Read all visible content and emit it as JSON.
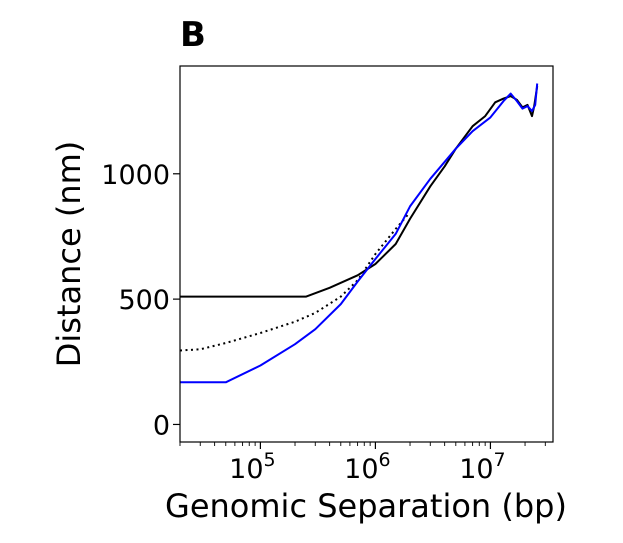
{
  "panel_label": "B",
  "chart_data": {
    "type": "line",
    "xlabel": "Genomic Separation (bp)",
    "ylabel": "Distance (nm)",
    "xscale": "log",
    "xlim": [
      20000,
      35000000
    ],
    "ylim": [
      -70,
      1430
    ],
    "x_ticks": [
      {
        "value": 100000,
        "base": "10",
        "exp": "5"
      },
      {
        "value": 1000000,
        "base": "10",
        "exp": "6"
      },
      {
        "value": 10000000,
        "base": "10",
        "exp": "7"
      }
    ],
    "y_ticks": [
      {
        "value": 0,
        "label": "0"
      },
      {
        "value": 500,
        "label": "500"
      },
      {
        "value": 1000,
        "label": "1000"
      }
    ],
    "grid": false,
    "legend": "none",
    "series": [
      {
        "color": "#000000",
        "style": "solid",
        "points": [
          [
            20000,
            510
          ],
          [
            250000,
            510
          ],
          [
            400000,
            545
          ],
          [
            700000,
            595
          ],
          [
            1000000,
            640
          ],
          [
            1500000,
            720
          ],
          [
            2000000,
            820
          ],
          [
            3000000,
            950
          ],
          [
            4000000,
            1030
          ],
          [
            5000000,
            1100
          ],
          [
            7000000,
            1190
          ],
          [
            9000000,
            1230
          ],
          [
            11000000,
            1285
          ],
          [
            13000000,
            1300
          ],
          [
            15000000,
            1310
          ],
          [
            17000000,
            1295
          ],
          [
            19000000,
            1265
          ],
          [
            21000000,
            1275
          ],
          [
            23000000,
            1230
          ],
          [
            24000000,
            1270
          ],
          [
            25500000,
            1350
          ]
        ]
      },
      {
        "color": "#000000",
        "style": "dotted",
        "points": [
          [
            20000,
            295
          ],
          [
            30000,
            300
          ],
          [
            50000,
            325
          ],
          [
            100000,
            365
          ],
          [
            200000,
            410
          ],
          [
            300000,
            445
          ],
          [
            500000,
            510
          ],
          [
            700000,
            575
          ],
          [
            1000000,
            680
          ],
          [
            1500000,
            780
          ],
          [
            1900000,
            835
          ]
        ]
      },
      {
        "color": "#0000ff",
        "style": "solid",
        "points": [
          [
            20000,
            168
          ],
          [
            50000,
            168
          ],
          [
            100000,
            235
          ],
          [
            200000,
            320
          ],
          [
            300000,
            380
          ],
          [
            500000,
            480
          ],
          [
            700000,
            570
          ],
          [
            1000000,
            660
          ],
          [
            1500000,
            760
          ],
          [
            2000000,
            870
          ],
          [
            3000000,
            980
          ],
          [
            5000000,
            1100
          ],
          [
            7000000,
            1170
          ],
          [
            10000000,
            1225
          ],
          [
            13000000,
            1290
          ],
          [
            15000000,
            1320
          ],
          [
            17000000,
            1290
          ],
          [
            19000000,
            1260
          ],
          [
            21000000,
            1270
          ],
          [
            23000000,
            1250
          ],
          [
            24500000,
            1275
          ],
          [
            25500000,
            1360
          ]
        ]
      }
    ]
  }
}
